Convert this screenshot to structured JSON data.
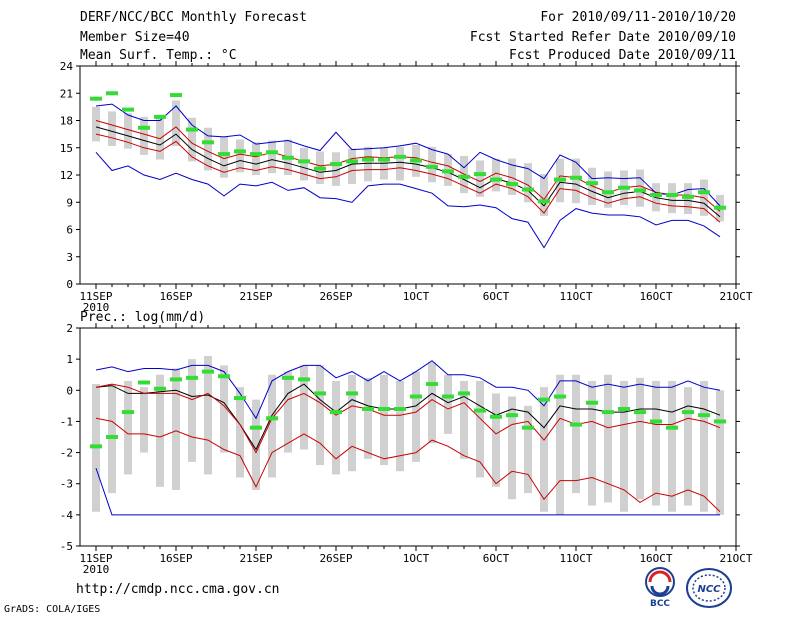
{
  "header": {
    "left": [
      "DERF/NCC/BCC Monthly Forecast",
      "Member Size=40",
      "Mean Surf. Temp.: °C"
    ],
    "right": [
      "For 2010/09/11-2010/10/20",
      "Fcst Started Refer Date 2010/09/10",
      "Fcst Produced Date 2010/09/11"
    ]
  },
  "url_text": "http://cmdp.ncc.cma.gov.cn",
  "credit_text": "GrADS: COLA/IGES",
  "logos": [
    "BCC",
    "NCC"
  ],
  "colors": {
    "bar": "#d0d0d0",
    "mean": "#000000",
    "spread": "#cc0000",
    "extreme": "#0000cc",
    "obs": "#33dd33"
  },
  "chart_data": [
    {
      "type": "line",
      "title": "Mean Surf. Temp.: °C",
      "ylabel": "°C",
      "ylim": [
        0,
        24
      ],
      "yticks": [
        0,
        3,
        6,
        9,
        12,
        15,
        18,
        21,
        24
      ],
      "xticks": [
        {
          "day": 0,
          "label": "11SEP",
          "sub": "2010"
        },
        {
          "day": 5,
          "label": "16SEP"
        },
        {
          "day": 10,
          "label": "21SEP"
        },
        {
          "day": 15,
          "label": "26SEP"
        },
        {
          "day": 20,
          "label": "1OCT"
        },
        {
          "day": 25,
          "label": "6OCT"
        },
        {
          "day": 30,
          "label": "11OCT"
        },
        {
          "day": 35,
          "label": "16OCT"
        },
        {
          "day": 40,
          "label": "21OCT"
        }
      ],
      "x": [
        0,
        1,
        2,
        3,
        4,
        5,
        6,
        7,
        8,
        9,
        10,
        11,
        12,
        13,
        14,
        15,
        16,
        17,
        18,
        19,
        20,
        21,
        22,
        23,
        24,
        25,
        26,
        27,
        28,
        29,
        30,
        31,
        32,
        33,
        34,
        35,
        36,
        37,
        38,
        39
      ],
      "bar_low": [
        15.7,
        15.2,
        14.9,
        14.2,
        13.7,
        15.2,
        13.5,
        12.5,
        11.7,
        12.3,
        12.0,
        12.2,
        12.0,
        11.4,
        11.0,
        10.8,
        11.0,
        11.3,
        11.5,
        11.4,
        11.8,
        11.2,
        10.8,
        10.0,
        9.6,
        10.2,
        9.8,
        9.0,
        7.5,
        9.0,
        8.9,
        8.7,
        8.4,
        8.7,
        8.5,
        8.0,
        7.8,
        7.7,
        7.5,
        6.9
      ],
      "bar_high": [
        19.5,
        19.0,
        18.8,
        18.4,
        18.5,
        20.2,
        18.3,
        17.2,
        16.2,
        15.9,
        15.6,
        15.8,
        15.9,
        15.0,
        14.6,
        14.5,
        14.9,
        15.1,
        15.0,
        15.1,
        15.3,
        15.1,
        14.3,
        14.1,
        13.6,
        13.8,
        13.8,
        13.3,
        12.1,
        13.8,
        13.8,
        12.8,
        12.4,
        12.5,
        12.6,
        11.1,
        11.1,
        11.1,
        11.5,
        9.8
      ],
      "series": [
        {
          "name": "obs",
          "values": [
            20.4,
            21.0,
            19.2,
            17.2,
            18.4,
            20.8,
            17.0,
            15.6,
            14.3,
            14.6,
            14.3,
            14.5,
            13.9,
            13.5,
            12.7,
            13.2,
            13.5,
            13.7,
            13.7,
            14.0,
            13.6,
            12.9,
            12.4,
            11.8,
            12.1,
            11.5,
            11.0,
            10.4,
            9.1,
            11.5,
            11.7,
            11.1,
            10.1,
            10.6,
            10.3,
            9.8,
            9.8,
            9.6,
            10.1,
            8.4
          ]
        },
        {
          "name": "mean",
          "values": [
            17.3,
            16.8,
            16.3,
            15.8,
            15.3,
            16.5,
            14.8,
            13.8,
            13.0,
            13.6,
            13.2,
            13.7,
            13.3,
            12.8,
            12.3,
            12.5,
            13.2,
            13.3,
            13.3,
            13.4,
            13.2,
            12.8,
            12.3,
            11.5,
            10.6,
            11.6,
            11.1,
            10.3,
            8.6,
            11.2,
            11.0,
            10.2,
            9.5,
            10.0,
            10.2,
            9.5,
            9.2,
            9.2,
            8.9,
            7.4
          ]
        },
        {
          "name": "upper",
          "values": [
            18.0,
            17.5,
            17.0,
            16.5,
            16.0,
            17.3,
            15.5,
            14.6,
            13.8,
            14.3,
            14.0,
            14.5,
            14.0,
            13.5,
            13.0,
            13.2,
            13.8,
            14.0,
            13.9,
            14.0,
            13.9,
            13.4,
            13.0,
            12.1,
            11.3,
            12.2,
            11.7,
            10.9,
            9.3,
            11.9,
            11.7,
            10.8,
            10.1,
            10.6,
            10.8,
            10.1,
            9.8,
            9.8,
            9.5,
            8.0
          ]
        },
        {
          "name": "lower",
          "values": [
            16.5,
            16.1,
            15.6,
            15.0,
            14.6,
            15.7,
            14.0,
            13.0,
            12.3,
            12.8,
            12.5,
            12.9,
            12.6,
            12.1,
            11.6,
            11.8,
            12.5,
            12.6,
            12.6,
            12.8,
            12.5,
            12.1,
            11.6,
            10.8,
            10.0,
            11.0,
            10.5,
            9.6,
            7.8,
            10.5,
            10.3,
            9.5,
            8.9,
            9.4,
            9.6,
            8.9,
            8.6,
            8.5,
            8.3,
            6.8
          ]
        },
        {
          "name": "max",
          "values": [
            19.6,
            19.8,
            18.6,
            18.0,
            18.0,
            19.6,
            17.5,
            16.3,
            16.2,
            16.4,
            15.4,
            15.6,
            15.8,
            15.2,
            14.7,
            16.7,
            14.8,
            14.9,
            15.0,
            15.2,
            15.5,
            14.8,
            14.3,
            12.8,
            14.5,
            13.7,
            13.1,
            12.7,
            11.6,
            14.2,
            13.4,
            11.6,
            11.7,
            11.6,
            11.7,
            10.0,
            9.8,
            10.4,
            10.5,
            8.6
          ]
        },
        {
          "name": "min",
          "values": [
            14.5,
            12.5,
            13.0,
            12.0,
            11.5,
            12.2,
            11.5,
            11.0,
            9.7,
            11.0,
            10.8,
            11.2,
            10.3,
            10.6,
            9.5,
            9.4,
            9.0,
            10.8,
            11.0,
            11.0,
            10.5,
            10.0,
            8.6,
            8.5,
            8.7,
            8.4,
            7.2,
            6.8,
            4.0,
            7.0,
            8.3,
            7.8,
            7.6,
            7.6,
            7.4,
            6.5,
            7.0,
            7.0,
            6.4,
            5.2
          ]
        }
      ]
    },
    {
      "type": "line",
      "title": "Prec.: log(mm/d)",
      "ylabel": "log(mm/d)",
      "ylim": [
        -5,
        2
      ],
      "yticks": [
        -5,
        -4,
        -3,
        -2,
        -1,
        0,
        1,
        2
      ],
      "xticks": [
        {
          "day": 0,
          "label": "11SEP",
          "sub": "2010"
        },
        {
          "day": 5,
          "label": "16SEP"
        },
        {
          "day": 10,
          "label": "21SEP"
        },
        {
          "day": 15,
          "label": "26SEP"
        },
        {
          "day": 20,
          "label": "1OCT"
        },
        {
          "day": 25,
          "label": "6OCT"
        },
        {
          "day": 30,
          "label": "11OCT"
        },
        {
          "day": 35,
          "label": "16OCT"
        },
        {
          "day": 40,
          "label": "21OCT"
        }
      ],
      "x": [
        0,
        1,
        2,
        3,
        4,
        5,
        6,
        7,
        8,
        9,
        10,
        11,
        12,
        13,
        14,
        15,
        16,
        17,
        18,
        19,
        20,
        21,
        22,
        23,
        24,
        25,
        26,
        27,
        28,
        29,
        30,
        31,
        32,
        33,
        34,
        35,
        36,
        37,
        38,
        39
      ],
      "bar_low": [
        -3.9,
        -3.3,
        -2.7,
        -2.0,
        -3.1,
        -3.2,
        -2.3,
        -2.7,
        -2.0,
        -2.8,
        -3.2,
        -2.8,
        -2.0,
        -1.9,
        -2.4,
        -2.7,
        -2.6,
        -2.2,
        -2.4,
        -2.6,
        -2.3,
        -1.7,
        -1.4,
        -2.2,
        -2.8,
        -3.1,
        -3.5,
        -3.3,
        -3.9,
        -4.0,
        -3.3,
        -3.7,
        -3.6,
        -3.9,
        -3.5,
        -3.7,
        -3.9,
        -3.7,
        -3.9,
        -4.0
      ],
      "bar_high": [
        0.2,
        0.2,
        0.3,
        0.1,
        0.5,
        0.7,
        1.0,
        1.1,
        0.8,
        0.1,
        -0.3,
        0.5,
        0.6,
        0.8,
        0.8,
        0.3,
        0.5,
        0.4,
        0.5,
        0.3,
        0.6,
        0.9,
        0.5,
        0.3,
        0.3,
        -0.1,
        -0.2,
        -0.5,
        0.1,
        0.5,
        0.5,
        0.3,
        0.5,
        0.3,
        0.4,
        0.3,
        0.3,
        0.1,
        0.3,
        0.0
      ],
      "series": [
        {
          "name": "obs",
          "values": [
            -1.8,
            -1.5,
            -0.7,
            0.25,
            0.05,
            0.35,
            0.4,
            0.6,
            0.45,
            -0.25,
            -1.2,
            -0.9,
            0.4,
            0.35,
            -0.1,
            -0.7,
            -0.1,
            -0.6,
            -0.6,
            -0.6,
            -0.2,
            0.2,
            -0.2,
            -0.1,
            -0.65,
            -0.85,
            -0.8,
            -1.2,
            -0.3,
            -0.2,
            -1.1,
            -0.4,
            -0.7,
            -0.6,
            -0.7,
            -1.0,
            -1.2,
            -0.7,
            -0.8,
            -1.0
          ]
        },
        {
          "name": "mean",
          "values": [
            0.1,
            0.15,
            -0.1,
            -0.1,
            -0.05,
            0.0,
            -0.2,
            -0.15,
            -0.4,
            -1.1,
            -1.9,
            -0.8,
            -0.1,
            0.2,
            -0.3,
            -0.7,
            -0.3,
            -0.5,
            -0.6,
            -0.6,
            -0.5,
            -0.1,
            -0.4,
            -0.2,
            -0.5,
            -0.8,
            -0.6,
            -0.7,
            -1.2,
            -0.5,
            -0.6,
            -0.6,
            -0.7,
            -0.7,
            -0.6,
            -0.6,
            -0.7,
            -0.5,
            -0.6,
            -0.8
          ]
        },
        {
          "name": "upper",
          "values": [
            0.1,
            0.2,
            0.1,
            -0.1,
            -0.1,
            -0.1,
            -0.3,
            -0.1,
            -0.5,
            -1.1,
            -2.0,
            -0.9,
            -0.3,
            -0.1,
            -0.4,
            -0.8,
            -0.5,
            -0.6,
            -0.8,
            -0.8,
            -0.7,
            -0.3,
            -0.6,
            -0.4,
            -0.9,
            -1.4,
            -1.1,
            -1.0,
            -1.6,
            -0.9,
            -1.1,
            -1.0,
            -1.2,
            -1.1,
            -1.0,
            -1.1,
            -1.1,
            -0.9,
            -1.0,
            -1.2
          ]
        },
        {
          "name": "lower",
          "values": [
            -0.9,
            -1.0,
            -1.4,
            -1.4,
            -1.5,
            -1.3,
            -1.5,
            -1.6,
            -1.9,
            -2.1,
            -3.1,
            -2.0,
            -1.7,
            -1.4,
            -1.7,
            -2.2,
            -1.8,
            -2.0,
            -2.2,
            -2.1,
            -2.0,
            -1.6,
            -1.8,
            -2.1,
            -2.3,
            -3.0,
            -2.6,
            -2.7,
            -3.5,
            -2.9,
            -2.9,
            -2.8,
            -3.0,
            -3.2,
            -3.6,
            -3.3,
            -3.4,
            -3.2,
            -3.4,
            -3.9
          ]
        },
        {
          "name": "max",
          "values": [
            0.65,
            0.75,
            0.6,
            0.7,
            0.7,
            0.65,
            0.8,
            0.8,
            0.6,
            -0.1,
            -0.9,
            0.3,
            0.6,
            0.8,
            0.8,
            0.4,
            0.6,
            0.3,
            0.6,
            0.3,
            0.6,
            0.95,
            0.5,
            0.5,
            0.4,
            0.1,
            0.1,
            0.0,
            -0.5,
            0.3,
            0.3,
            0.1,
            0.2,
            0.1,
            0.2,
            0.1,
            0.1,
            0.3,
            0.1,
            0.0
          ]
        },
        {
          "name": "min",
          "values": [
            -2.5,
            -4.0,
            -4.0,
            -4.0,
            -4.0,
            -4.0,
            -4.0,
            -4.0,
            -4.0,
            -4.0,
            -4.0,
            -4.0,
            -4.0,
            -4.0,
            -4.0,
            -4.0,
            -4.0,
            -4.0,
            -4.0,
            -4.0,
            -4.0,
            -4.0,
            -4.0,
            -4.0,
            -4.0,
            -4.0,
            -4.0,
            -4.0,
            -4.0,
            -4.0,
            -4.0,
            -4.0,
            -4.0,
            -4.0,
            -4.0,
            -4.0,
            -4.0,
            -4.0,
            -4.0,
            -4.0
          ]
        }
      ]
    }
  ]
}
